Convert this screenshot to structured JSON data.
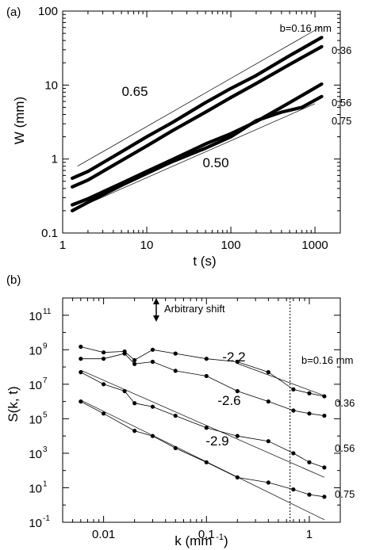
{
  "panels": [
    {
      "panel_label": "(a)",
      "chart_data": {
        "type": "line",
        "xlabel": "t (s)",
        "ylabel": "W  (mm)",
        "xscale": "log",
        "yscale": "log",
        "xlim": [
          1,
          2000
        ],
        "ylim": [
          0.1,
          100
        ],
        "xticks": [
          1,
          10,
          100,
          1000
        ],
        "yticks": [
          0.1,
          1,
          10,
          100
        ],
        "xtick_labels": [
          "1",
          "10",
          "100",
          "1000"
        ],
        "ytick_labels": [
          "0.1",
          "1",
          "10",
          "100"
        ],
        "series": [
          {
            "name": "b=0.16 mm",
            "points": [
              [
                1.3,
                0.55
              ],
              [
                2,
                0.68
              ],
              [
                5,
                1.25
              ],
              [
                10,
                2.0
              ],
              [
                20,
                3.1
              ],
              [
                50,
                5.8
              ],
              [
                100,
                9.0
              ],
              [
                200,
                13.5
              ],
              [
                500,
                25
              ],
              [
                1200,
                44
              ]
            ]
          },
          {
            "name": "0.36",
            "points": [
              [
                1.3,
                0.42
              ],
              [
                2,
                0.52
              ],
              [
                5,
                0.95
              ],
              [
                10,
                1.5
              ],
              [
                20,
                2.4
              ],
              [
                50,
                4.3
              ],
              [
                100,
                6.8
              ],
              [
                200,
                10.5
              ],
              [
                500,
                19
              ],
              [
                1200,
                33
              ]
            ]
          },
          {
            "name": "0.56",
            "points": [
              [
                1.3,
                0.24
              ],
              [
                2,
                0.29
              ],
              [
                5,
                0.47
              ],
              [
                10,
                0.68
              ],
              [
                20,
                0.98
              ],
              [
                50,
                1.6
              ],
              [
                100,
                2.2
              ],
              [
                200,
                3.2
              ],
              [
                500,
                5.8
              ],
              [
                1200,
                10.3
              ]
            ]
          },
          {
            "name": "0.75",
            "points": [
              [
                1.3,
                0.2
              ],
              [
                2,
                0.26
              ],
              [
                5,
                0.44
              ],
              [
                10,
                0.64
              ],
              [
                20,
                0.92
              ],
              [
                50,
                1.4
              ],
              [
                100,
                2.0
              ],
              [
                200,
                3.3
              ],
              [
                400,
                4.3
              ],
              [
                700,
                5.0
              ],
              [
                1200,
                7.0
              ]
            ]
          }
        ],
        "reference_lines": [
          {
            "label": "0.65",
            "points": [
              [
                1.5,
                0.8
              ],
              [
                1200,
                62
              ]
            ]
          },
          {
            "label": "0.50",
            "points": [
              [
                2,
                0.25
              ],
              [
                1000,
                5.6
              ]
            ]
          }
        ]
      }
    },
    {
      "panel_label": "(b)",
      "chart_data": {
        "type": "scatter",
        "xlabel": "k (mm",
        "xlabel_sup": "-1",
        "xlabel_close": ")",
        "ylabel": "S(k, t)",
        "xscale": "log",
        "yscale": "log",
        "xlim": [
          0.004,
          2
        ],
        "ylim": [
          0.1,
          1000000000000
        ],
        "xticks": [
          0.01,
          0.1,
          1
        ],
        "xtick_labels": [
          "0.01",
          "0.1",
          "1"
        ],
        "yticks": [
          {
            "value": 0.1,
            "base": "10",
            "exp": "-1"
          },
          {
            "value": 10,
            "base": "10",
            "exp": "1"
          },
          {
            "value": 1000,
            "base": "10",
            "exp": "3"
          },
          {
            "value": 100000,
            "base": "10",
            "exp": "5"
          },
          {
            "value": 10000000,
            "base": "10",
            "exp": "7"
          },
          {
            "value": 1000000000,
            "base": "10",
            "exp": "9"
          },
          {
            "value": 100000000000,
            "base": "10",
            "exp": "11"
          }
        ],
        "annotation": "Arbitrary shift",
        "vertical_line_x": 0.65,
        "series": [
          {
            "name": "b=0.16 mm",
            "points": [
              [
                0.006,
                1500000000.0
              ],
              [
                0.01,
                700000000.0
              ],
              [
                0.016,
                800000000.0
              ],
              [
                0.02,
                250000000.0
              ],
              [
                0.03,
                1000000000.0
              ],
              [
                0.05,
                600000000.0
              ],
              [
                0.1,
                300000000.0
              ],
              [
                0.2,
                200000000.0
              ],
              [
                0.4,
                50000000.0
              ],
              [
                0.7,
                5000000.0
              ],
              [
                1.0,
                3000000.0
              ],
              [
                1.4,
                2000000.0
              ]
            ]
          },
          {
            "name": "0.36",
            "points": [
              [
                0.006,
                300000000.0
              ],
              [
                0.01,
                300000000.0
              ],
              [
                0.016,
                600000000.0
              ],
              [
                0.02,
                150000000.0
              ],
              [
                0.03,
                200000000.0
              ],
              [
                0.05,
                60000000.0
              ],
              [
                0.1,
                30000000.0
              ],
              [
                0.2,
                4000000.0
              ],
              [
                0.4,
                1000000.0
              ],
              [
                0.7,
                300000.0
              ],
              [
                1.0,
                200000.0
              ],
              [
                1.4,
                150000.0
              ]
            ]
          },
          {
            "name": "0.56",
            "points": [
              [
                0.006,
                50000000.0
              ],
              [
                0.01,
                10000000.0
              ],
              [
                0.016,
                4000000.0
              ],
              [
                0.02,
                800000.0
              ],
              [
                0.03,
                500000.0
              ],
              [
                0.05,
                150000.0
              ],
              [
                0.1,
                30000.0
              ],
              [
                0.2,
                10000.0
              ],
              [
                0.4,
                5000.0
              ],
              [
                0.7,
                1000.0
              ],
              [
                1.0,
                300.0
              ],
              [
                1.4,
                150.0
              ]
            ]
          },
          {
            "name": "0.75",
            "points": [
              [
                0.006,
                1000000.0
              ],
              [
                0.01,
                200000.0
              ],
              [
                0.02,
                20000.0
              ],
              [
                0.03,
                10000.0
              ],
              [
                0.05,
                2000.0
              ],
              [
                0.1,
                300.0
              ],
              [
                0.2,
                40
              ],
              [
                0.4,
                20
              ],
              [
                0.7,
                8
              ],
              [
                1.0,
                4
              ],
              [
                1.4,
                3
              ]
            ]
          }
        ],
        "reference_lines": [
          {
            "label": "-2.2",
            "points": [
              [
                0.2,
                160000000.0
              ],
              [
                1.4,
                2200000.0
              ]
            ]
          },
          {
            "label": "-2.6",
            "points": [
              [
                0.006,
                65000000.0
              ],
              [
                1.4,
                40.0
              ]
            ]
          },
          {
            "label": "-2.9",
            "points": [
              [
                0.006,
                1200000.0
              ],
              [
                1.4,
                0.14
              ]
            ]
          }
        ]
      }
    }
  ]
}
